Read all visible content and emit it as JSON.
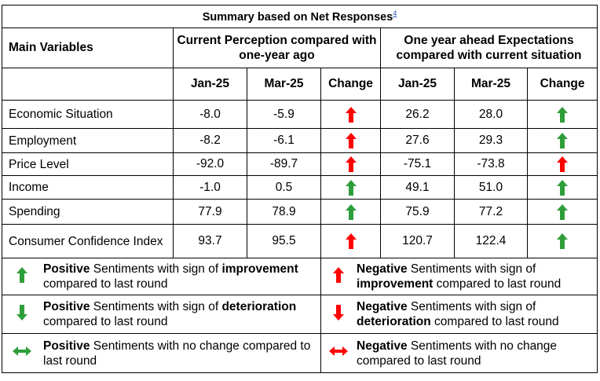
{
  "title": "Summary based on Net Responses",
  "title_footnote": "4",
  "header": {
    "main_variables": "Main Variables",
    "current_group": "Current Perception compared with one-year ago",
    "ahead_group": "One year ahead Expectations compared with current situation",
    "col_jan": "Jan-25",
    "col_mar": "Mar-25",
    "col_change": "Change"
  },
  "rows": [
    {
      "label": "Economic Situation",
      "cur_jan": "-8.0",
      "cur_mar": "-5.9",
      "cur_change": "negative-improvement-icon",
      "exp_jan": "26.2",
      "exp_mar": "28.0",
      "exp_change": "positive-improvement-icon"
    },
    {
      "label": "Employment",
      "cur_jan": "-8.2",
      "cur_mar": "-6.1",
      "cur_change": "negative-improvement-icon",
      "exp_jan": "27.6",
      "exp_mar": "29.3",
      "exp_change": "positive-improvement-icon"
    },
    {
      "label": "Price Level",
      "cur_jan": "-92.0",
      "cur_mar": "-89.7",
      "cur_change": "negative-improvement-icon",
      "exp_jan": "-75.1",
      "exp_mar": "-73.8",
      "exp_change": "negative-improvement-icon"
    },
    {
      "label": "Income",
      "cur_jan": "-1.0",
      "cur_mar": "0.5",
      "cur_change": "positive-improvement-icon",
      "exp_jan": "49.1",
      "exp_mar": "51.0",
      "exp_change": "positive-improvement-icon"
    },
    {
      "label": "Spending",
      "cur_jan": "77.9",
      "cur_mar": "78.9",
      "cur_change": "positive-improvement-icon",
      "exp_jan": "75.9",
      "exp_mar": "77.2",
      "exp_change": "positive-improvement-icon"
    },
    {
      "label": "Consumer Confidence Index",
      "cur_jan": "93.7",
      "cur_mar": "95.5",
      "cur_change": "negative-improvement-icon",
      "exp_jan": "120.7",
      "exp_mar": "122.4",
      "exp_change": "positive-improvement-icon"
    }
  ],
  "legend": {
    "pos_improve": {
      "bold1": "Positive",
      "t1": " Sentiments with sign of ",
      "bold2": "improvement",
      "t2": " compared to last round"
    },
    "neg_improve": {
      "bold1": "Negative",
      "t1": " Sentiments with sign of ",
      "bold2": "improvement",
      "t2": " compared to last round"
    },
    "pos_deter": {
      "bold1": "Positive",
      "t1": " Sentiments with sign of ",
      "bold2": "deterioration",
      "t2": " compared to last round"
    },
    "neg_deter": {
      "bold1": "Negative",
      "t1": " Sentiments with sign of ",
      "bold2": "deterioration",
      "t2": " compared to last round"
    },
    "pos_nochange": {
      "bold1": "Positive",
      "t1": " Sentiments with no change compared to last round"
    },
    "neg_nochange": {
      "bold1": "Negative",
      "t1": " Sentiments with no change compared to last round"
    }
  },
  "colors": {
    "positive": "#2e9e3a",
    "negative": "#ff0000"
  }
}
